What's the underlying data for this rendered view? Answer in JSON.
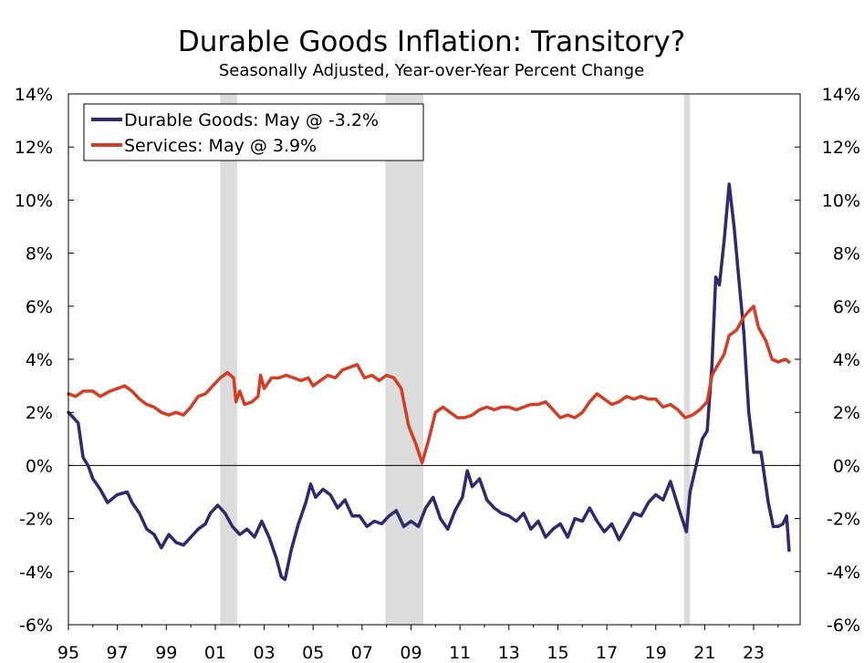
{
  "chart_data": {
    "type": "line",
    "title": "Durable Goods Inflation: Transitory?",
    "subtitle": "Seasonally Adjusted, Year-over-Year Percent Change",
    "xlabel": "",
    "ylabel": "",
    "xlim": [
      1995.0,
      2024.9
    ],
    "ylim": [
      -6,
      14
    ],
    "y_ticks": [
      14,
      12,
      10,
      8,
      6,
      4,
      2,
      0,
      -2,
      -4,
      -6
    ],
    "y_tick_labels": [
      "14%",
      "12%",
      "10%",
      "8%",
      "6%",
      "4%",
      "2%",
      "0%",
      "-2%",
      "-4%",
      "-6%"
    ],
    "x_ticks": [
      1995,
      1997,
      1999,
      2001,
      2003,
      2005,
      2007,
      2009,
      2011,
      2013,
      2015,
      2017,
      2019,
      2021,
      2023
    ],
    "x_tick_labels": [
      "95",
      "97",
      "99",
      "01",
      "03",
      "05",
      "07",
      "09",
      "11",
      "13",
      "15",
      "17",
      "19",
      "21",
      "23"
    ],
    "recessions": [
      [
        2001.2,
        2001.9
      ],
      [
        2007.95,
        2009.5
      ],
      [
        2020.15,
        2020.4
      ]
    ],
    "legend_position": "top-left",
    "legend": [
      "Durable Goods: May @ -3.2%",
      "Services: May @ 3.9%"
    ],
    "series": [
      {
        "name": "Durable Goods: May @ -3.2%",
        "color": "#2e2a6b",
        "points": [
          [
            1995.0,
            2.0
          ],
          [
            1995.2,
            1.8
          ],
          [
            1995.4,
            1.6
          ],
          [
            1995.6,
            0.3
          ],
          [
            1995.8,
            0.0
          ],
          [
            1996.0,
            -0.5
          ],
          [
            1996.3,
            -0.9
          ],
          [
            1996.6,
            -1.4
          ],
          [
            1997.0,
            -1.1
          ],
          [
            1997.4,
            -1.0
          ],
          [
            1997.6,
            -1.4
          ],
          [
            1997.9,
            -1.8
          ],
          [
            1998.2,
            -2.4
          ],
          [
            1998.5,
            -2.6
          ],
          [
            1998.8,
            -3.1
          ],
          [
            1999.1,
            -2.6
          ],
          [
            1999.4,
            -2.9
          ],
          [
            1999.7,
            -3.0
          ],
          [
            2000.0,
            -2.7
          ],
          [
            2000.3,
            -2.4
          ],
          [
            2000.6,
            -2.2
          ],
          [
            2000.8,
            -1.8
          ],
          [
            2001.1,
            -1.5
          ],
          [
            2001.4,
            -1.8
          ],
          [
            2001.7,
            -2.3
          ],
          [
            2002.0,
            -2.6
          ],
          [
            2002.3,
            -2.4
          ],
          [
            2002.6,
            -2.7
          ],
          [
            2002.9,
            -2.1
          ],
          [
            2003.2,
            -2.7
          ],
          [
            2003.5,
            -3.5
          ],
          [
            2003.7,
            -4.2
          ],
          [
            2003.85,
            -4.3
          ],
          [
            2004.1,
            -3.2
          ],
          [
            2004.4,
            -2.2
          ],
          [
            2004.7,
            -1.4
          ],
          [
            2004.9,
            -0.7
          ],
          [
            2005.1,
            -1.2
          ],
          [
            2005.4,
            -0.9
          ],
          [
            2005.7,
            -1.1
          ],
          [
            2006.0,
            -1.6
          ],
          [
            2006.3,
            -1.3
          ],
          [
            2006.6,
            -1.9
          ],
          [
            2006.9,
            -1.9
          ],
          [
            2007.2,
            -2.3
          ],
          [
            2007.5,
            -2.1
          ],
          [
            2007.8,
            -2.2
          ],
          [
            2008.1,
            -1.9
          ],
          [
            2008.4,
            -1.7
          ],
          [
            2008.7,
            -2.3
          ],
          [
            2009.0,
            -2.1
          ],
          [
            2009.3,
            -2.3
          ],
          [
            2009.6,
            -1.6
          ],
          [
            2009.9,
            -1.2
          ],
          [
            2010.2,
            -2.0
          ],
          [
            2010.5,
            -2.4
          ],
          [
            2010.8,
            -1.7
          ],
          [
            2011.1,
            -1.2
          ],
          [
            2011.3,
            -0.2
          ],
          [
            2011.5,
            -0.8
          ],
          [
            2011.8,
            -0.5
          ],
          [
            2012.1,
            -1.3
          ],
          [
            2012.4,
            -1.6
          ],
          [
            2012.7,
            -1.8
          ],
          [
            2013.0,
            -1.9
          ],
          [
            2013.3,
            -2.1
          ],
          [
            2013.6,
            -1.8
          ],
          [
            2013.9,
            -2.4
          ],
          [
            2014.2,
            -2.1
          ],
          [
            2014.5,
            -2.7
          ],
          [
            2014.8,
            -2.4
          ],
          [
            2015.1,
            -2.2
          ],
          [
            2015.4,
            -2.7
          ],
          [
            2015.7,
            -2.0
          ],
          [
            2016.0,
            -2.1
          ],
          [
            2016.3,
            -1.6
          ],
          [
            2016.6,
            -2.1
          ],
          [
            2016.9,
            -2.5
          ],
          [
            2017.2,
            -2.2
          ],
          [
            2017.5,
            -2.8
          ],
          [
            2017.8,
            -2.3
          ],
          [
            2018.1,
            -1.8
          ],
          [
            2018.4,
            -1.9
          ],
          [
            2018.7,
            -1.4
          ],
          [
            2019.0,
            -1.1
          ],
          [
            2019.3,
            -1.3
          ],
          [
            2019.6,
            -0.6
          ],
          [
            2019.8,
            -1.2
          ],
          [
            2020.0,
            -1.8
          ],
          [
            2020.25,
            -2.5
          ],
          [
            2020.4,
            -1.0
          ],
          [
            2020.6,
            -0.2
          ],
          [
            2020.9,
            1.0
          ],
          [
            2021.1,
            1.3
          ],
          [
            2021.3,
            3.8
          ],
          [
            2021.45,
            7.1
          ],
          [
            2021.6,
            6.8
          ],
          [
            2021.8,
            8.5
          ],
          [
            2022.0,
            10.6
          ],
          [
            2022.2,
            9.0
          ],
          [
            2022.4,
            7.0
          ],
          [
            2022.6,
            5.0
          ],
          [
            2022.8,
            2.0
          ],
          [
            2023.0,
            0.5
          ],
          [
            2023.3,
            0.5
          ],
          [
            2023.6,
            -1.4
          ],
          [
            2023.8,
            -2.3
          ],
          [
            2024.0,
            -2.3
          ],
          [
            2024.2,
            -2.2
          ],
          [
            2024.35,
            -1.9
          ],
          [
            2024.45,
            -3.2
          ]
        ]
      },
      {
        "name": "Services: May @ 3.9%",
        "color": "#d43d25",
        "points": [
          [
            1995.0,
            2.7
          ],
          [
            1995.3,
            2.6
          ],
          [
            1995.6,
            2.8
          ],
          [
            1996.0,
            2.8
          ],
          [
            1996.3,
            2.6
          ],
          [
            1996.7,
            2.8
          ],
          [
            1997.0,
            2.9
          ],
          [
            1997.3,
            3.0
          ],
          [
            1997.6,
            2.8
          ],
          [
            1997.9,
            2.5
          ],
          [
            1998.2,
            2.3
          ],
          [
            1998.5,
            2.2
          ],
          [
            1998.8,
            2.0
          ],
          [
            1999.1,
            1.9
          ],
          [
            1999.4,
            2.0
          ],
          [
            1999.7,
            1.9
          ],
          [
            2000.0,
            2.2
          ],
          [
            2000.3,
            2.6
          ],
          [
            2000.6,
            2.7
          ],
          [
            2000.9,
            3.0
          ],
          [
            2001.2,
            3.3
          ],
          [
            2001.5,
            3.5
          ],
          [
            2001.75,
            3.3
          ],
          [
            2001.85,
            2.4
          ],
          [
            2002.0,
            2.8
          ],
          [
            2002.2,
            2.3
          ],
          [
            2002.5,
            2.4
          ],
          [
            2002.75,
            2.6
          ],
          [
            2002.85,
            3.4
          ],
          [
            2003.0,
            2.9
          ],
          [
            2003.3,
            3.3
          ],
          [
            2003.6,
            3.3
          ],
          [
            2003.9,
            3.4
          ],
          [
            2004.2,
            3.3
          ],
          [
            2004.5,
            3.2
          ],
          [
            2004.8,
            3.3
          ],
          [
            2005.0,
            3.0
          ],
          [
            2005.3,
            3.2
          ],
          [
            2005.6,
            3.4
          ],
          [
            2005.9,
            3.3
          ],
          [
            2006.2,
            3.6
          ],
          [
            2006.5,
            3.7
          ],
          [
            2006.8,
            3.8
          ],
          [
            2007.1,
            3.3
          ],
          [
            2007.4,
            3.4
          ],
          [
            2007.7,
            3.2
          ],
          [
            2008.0,
            3.4
          ],
          [
            2008.3,
            3.3
          ],
          [
            2008.6,
            2.9
          ],
          [
            2008.9,
            1.5
          ],
          [
            2009.2,
            0.8
          ],
          [
            2009.45,
            0.1
          ],
          [
            2009.7,
            0.9
          ],
          [
            2010.0,
            2.0
          ],
          [
            2010.3,
            2.2
          ],
          [
            2010.6,
            2.0
          ],
          [
            2010.9,
            1.8
          ],
          [
            2011.2,
            1.8
          ],
          [
            2011.5,
            1.9
          ],
          [
            2011.8,
            2.1
          ],
          [
            2012.1,
            2.2
          ],
          [
            2012.4,
            2.1
          ],
          [
            2012.7,
            2.2
          ],
          [
            2013.0,
            2.2
          ],
          [
            2013.3,
            2.1
          ],
          [
            2013.6,
            2.2
          ],
          [
            2013.9,
            2.3
          ],
          [
            2014.2,
            2.3
          ],
          [
            2014.5,
            2.4
          ],
          [
            2014.8,
            2.1
          ],
          [
            2015.1,
            1.8
          ],
          [
            2015.4,
            1.9
          ],
          [
            2015.7,
            1.8
          ],
          [
            2016.0,
            2.0
          ],
          [
            2016.3,
            2.4
          ],
          [
            2016.6,
            2.7
          ],
          [
            2016.9,
            2.5
          ],
          [
            2017.2,
            2.3
          ],
          [
            2017.5,
            2.4
          ],
          [
            2017.8,
            2.6
          ],
          [
            2018.1,
            2.5
          ],
          [
            2018.4,
            2.6
          ],
          [
            2018.7,
            2.5
          ],
          [
            2019.0,
            2.5
          ],
          [
            2019.3,
            2.2
          ],
          [
            2019.6,
            2.3
          ],
          [
            2019.9,
            2.1
          ],
          [
            2020.2,
            1.8
          ],
          [
            2020.5,
            1.9
          ],
          [
            2020.8,
            2.1
          ],
          [
            2021.1,
            2.4
          ],
          [
            2021.3,
            3.4
          ],
          [
            2021.55,
            3.8
          ],
          [
            2021.8,
            4.2
          ],
          [
            2022.0,
            4.9
          ],
          [
            2022.3,
            5.1
          ],
          [
            2022.6,
            5.6
          ],
          [
            2022.8,
            5.8
          ],
          [
            2023.0,
            6.0
          ],
          [
            2023.2,
            5.2
          ],
          [
            2023.5,
            4.7
          ],
          [
            2023.75,
            4.0
          ],
          [
            2024.0,
            3.9
          ],
          [
            2024.3,
            4.0
          ],
          [
            2024.45,
            3.9
          ]
        ]
      }
    ]
  },
  "colors": {
    "durable": "#2e2a6b",
    "services": "#d43d25",
    "recession": "#dcdcdc",
    "axis": "#000000"
  }
}
